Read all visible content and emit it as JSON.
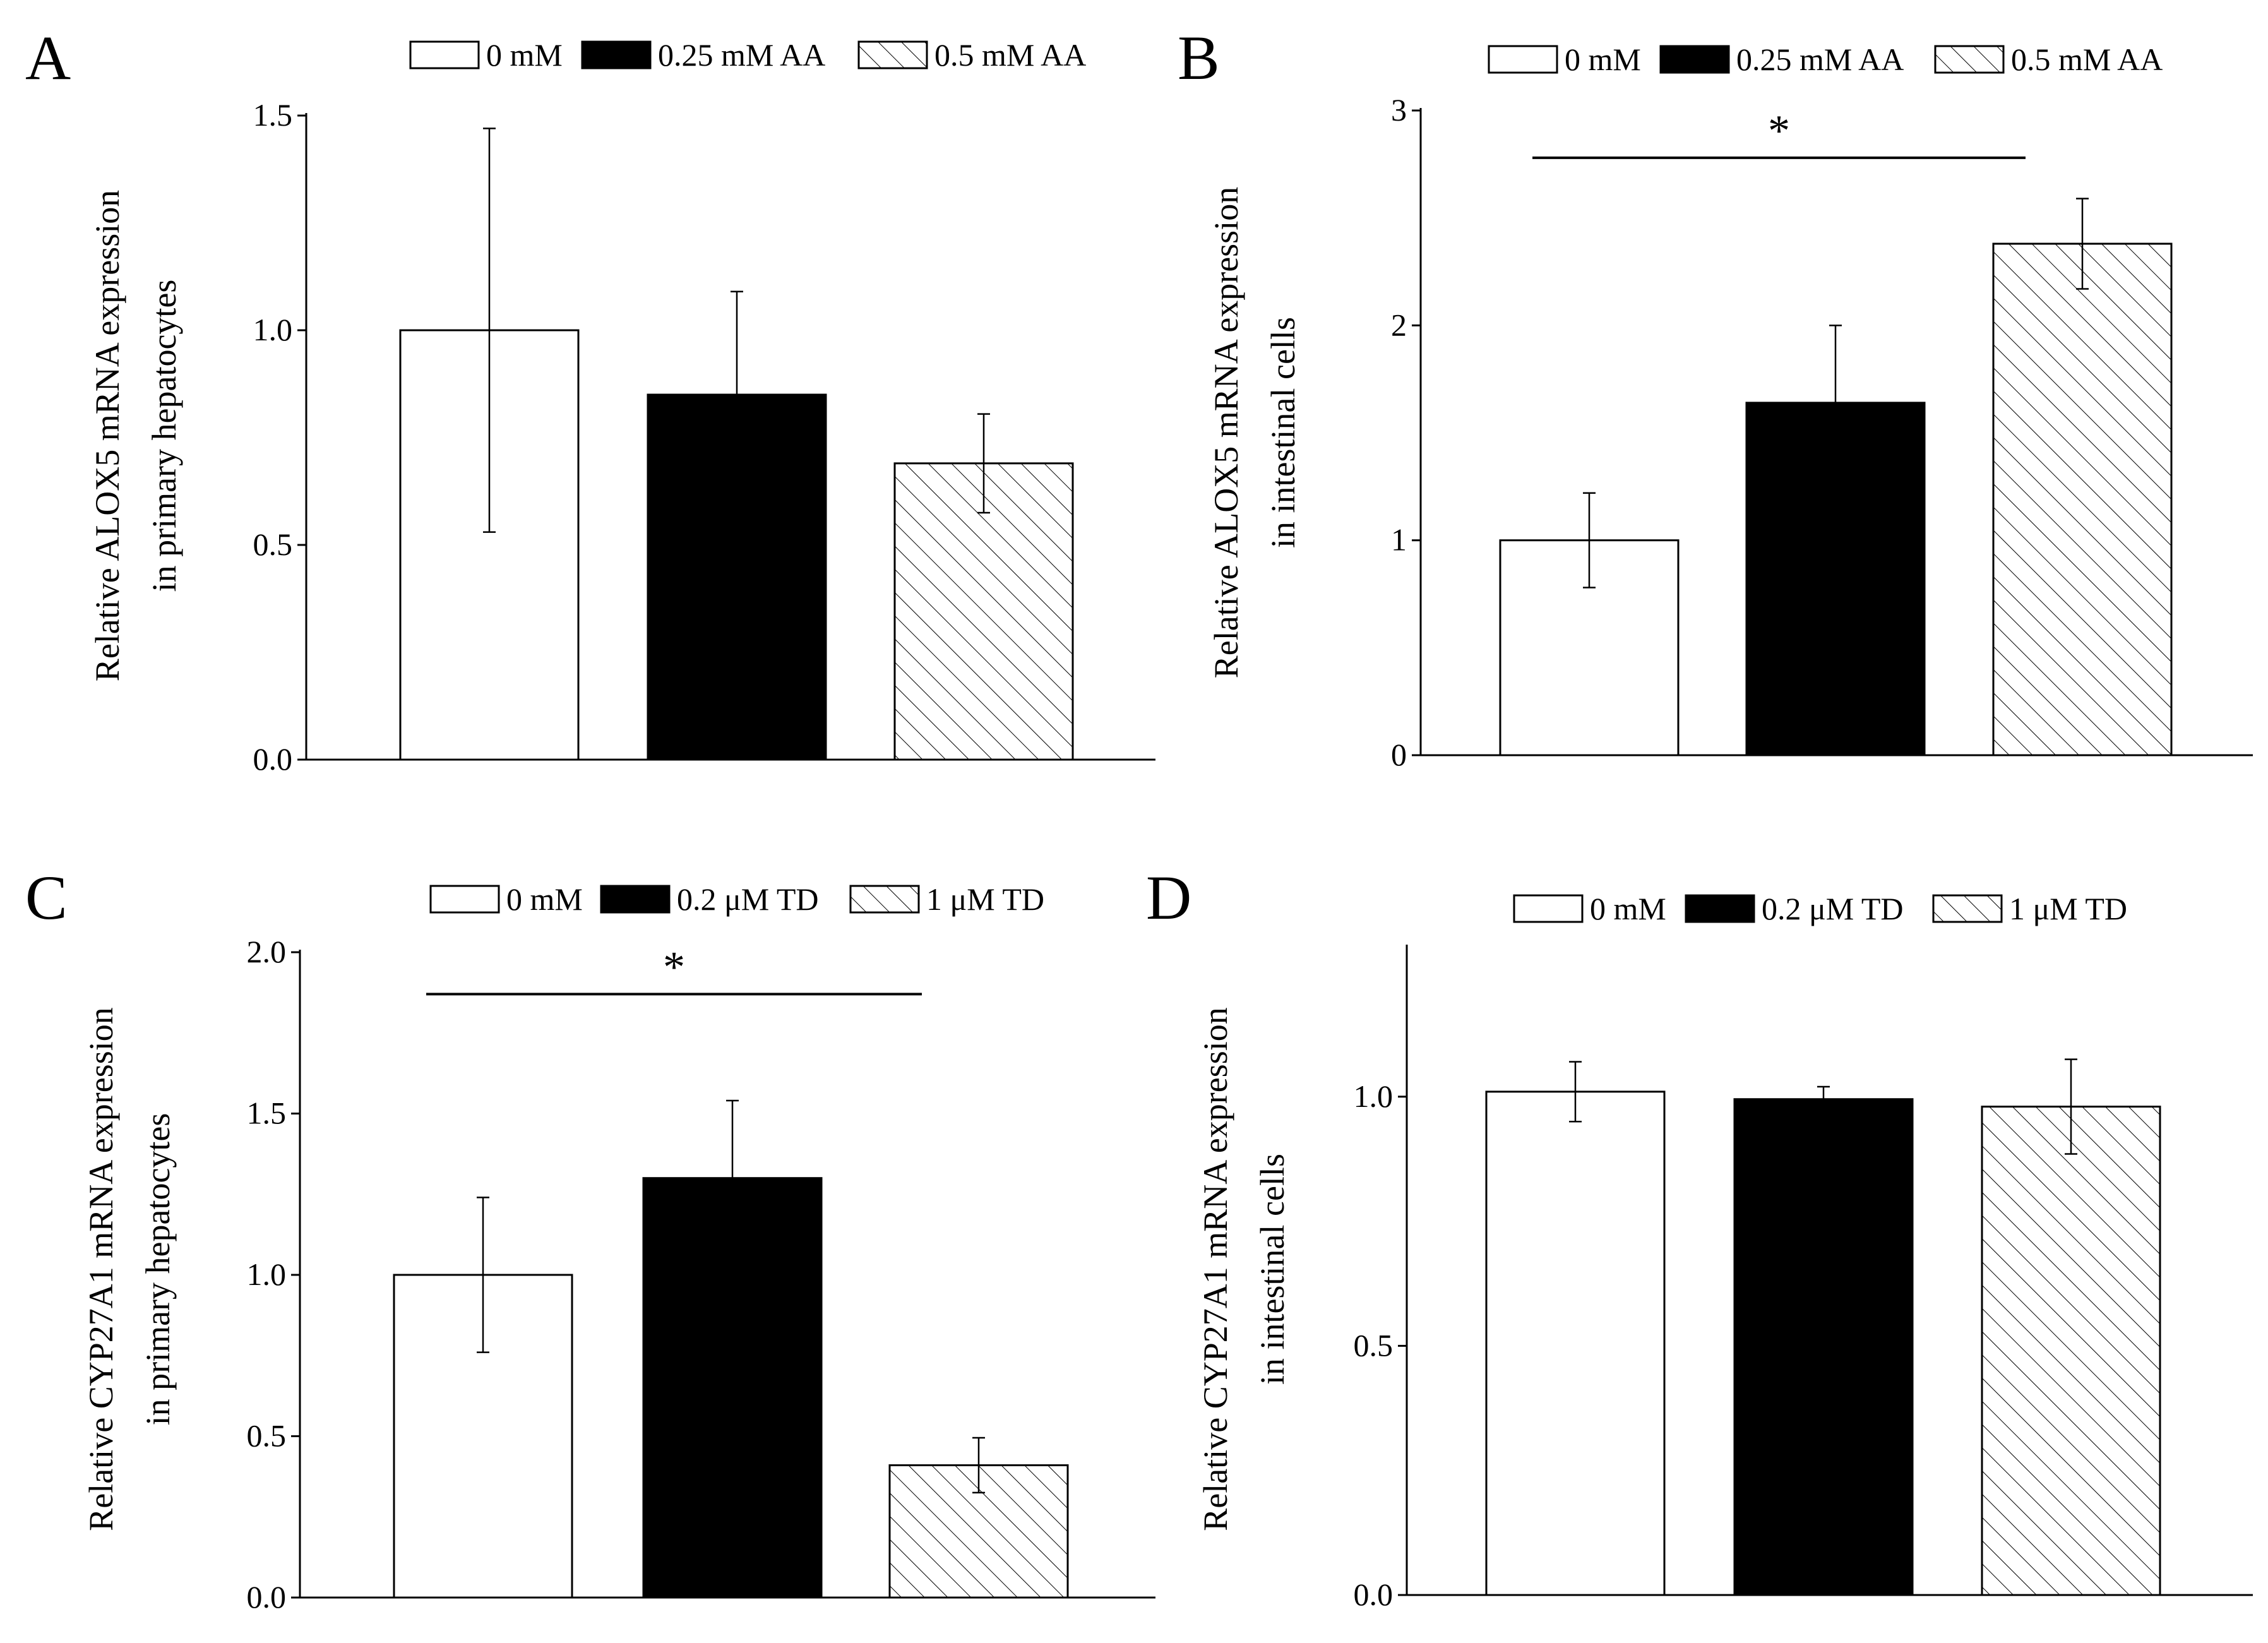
{
  "chart_data": [
    {
      "panel": "A",
      "type": "bar",
      "categories": [
        "0 mM",
        "0.25 mM AA",
        "0.5 mM AA"
      ],
      "values": [
        1.0,
        0.85,
        0.69
      ],
      "errors": [
        0.47,
        0.24,
        0.115
      ],
      "ylim": [
        0,
        1.5
      ],
      "yticks": [
        "0.0",
        "0.5",
        "1.0",
        "1.5"
      ],
      "ylabel": [
        "Relative ALOX5  mRNA  expression",
        "in primary hepatocytes"
      ],
      "legend": [
        "0 mM",
        "0.25 mM AA",
        "0.5 mM AA"
      ],
      "significance": null
    },
    {
      "panel": "B",
      "type": "bar",
      "categories": [
        "0 mM",
        "0.25 mM AA",
        "0.5 mM AA"
      ],
      "values": [
        1.0,
        1.64,
        2.38
      ],
      "errors": [
        0.22,
        0.36,
        0.21
      ],
      "ylim": [
        0,
        3
      ],
      "yticks": [
        "0",
        "1",
        "2",
        "3"
      ],
      "ylabel": [
        "Relative ALOX5  mRNA expression",
        "in intestinal cells"
      ],
      "legend": [
        "0 mM",
        "0.25 mM AA",
        "0.5 mM AA"
      ],
      "significance": {
        "label": "*",
        "from": 0,
        "to": 2,
        "y": 2.78
      }
    },
    {
      "panel": "C",
      "type": "bar",
      "categories": [
        "0 mM",
        "0.2 μM TD",
        "1 μM TD"
      ],
      "values": [
        1.0,
        1.3,
        0.41
      ],
      "errors": [
        0.24,
        0.24,
        0.085
      ],
      "ylim": [
        0,
        2.0
      ],
      "yticks": [
        "0.0",
        "0.5",
        "1.0",
        "1.5",
        "2.0"
      ],
      "ylabel": [
        "Relative CYP27A1  mRNA  expression",
        "in primary hepatocytes"
      ],
      "legend": [
        "0 mM",
        "0.2 μM TD",
        "1 μM TD"
      ],
      "significance": {
        "label": "*",
        "from": 0,
        "to": 2,
        "y": 1.87
      }
    },
    {
      "panel": "D",
      "type": "bar",
      "categories": [
        "0 mM",
        "0.2 μM TD",
        "1 μM TD"
      ],
      "values": [
        1.01,
        0.995,
        0.98
      ],
      "errors": [
        0.06,
        0.025,
        0.095
      ],
      "ylim": [
        0,
        1.3
      ],
      "yticks": [
        "0.0",
        "0.5",
        "1.0"
      ],
      "ylabel": [
        "Relative CYP27A1  mRNA expression",
        "in intestinal cells"
      ],
      "legend": [
        "0 mM",
        "0.2 μM TD",
        "1 μM TD"
      ],
      "significance": null
    }
  ]
}
